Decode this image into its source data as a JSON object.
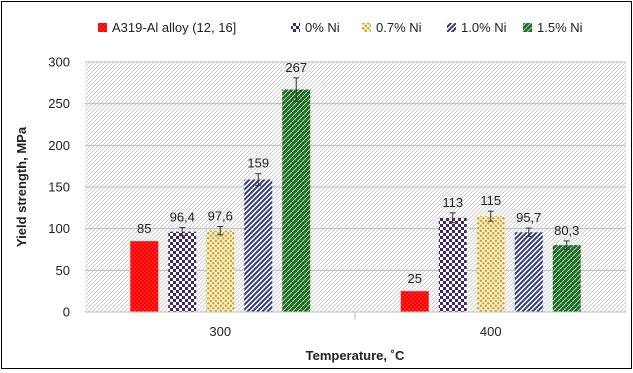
{
  "chart_data": {
    "type": "bar",
    "categories": [
      "300",
      "400"
    ],
    "series": [
      {
        "name": "A319-Al alloy (12, 16]",
        "values": [
          85,
          25
        ],
        "labels": [
          "85",
          "25"
        ],
        "err": [
          0,
          0
        ],
        "color": "#ff0000",
        "pattern": "red-dots"
      },
      {
        "name": "0% Ni",
        "values": [
          96.4,
          113
        ],
        "labels": [
          "96,4",
          "113"
        ],
        "err": [
          5,
          6
        ],
        "color": "#3b2a6b",
        "pattern": "checker"
      },
      {
        "name": "0.7% Ni",
        "values": [
          97.6,
          115
        ],
        "labels": [
          "97,6",
          "115"
        ],
        "err": [
          5,
          6
        ],
        "color": "#d4a52a",
        "pattern": "gold-dots"
      },
      {
        "name": "1.0% Ni",
        "values": [
          159,
          95.7
        ],
        "labels": [
          "159",
          "95,7"
        ],
        "err": [
          7,
          5
        ],
        "color": "#2e3a7a",
        "pattern": "zigzag"
      },
      {
        "name": "1.5% Ni",
        "values": [
          267,
          80.3
        ],
        "labels": [
          "267",
          "80,3"
        ],
        "err": [
          14,
          5
        ],
        "color": "#2e7d32",
        "pattern": "green-dots"
      }
    ],
    "xlabel": "Temperature, ˚C",
    "ylabel": "Yield strength, MPa",
    "ylim": [
      0,
      300
    ],
    "yticks": [
      "0",
      "50",
      "100",
      "150",
      "200",
      "250",
      "300"
    ],
    "legend_position": "top",
    "background": "hatched"
  }
}
